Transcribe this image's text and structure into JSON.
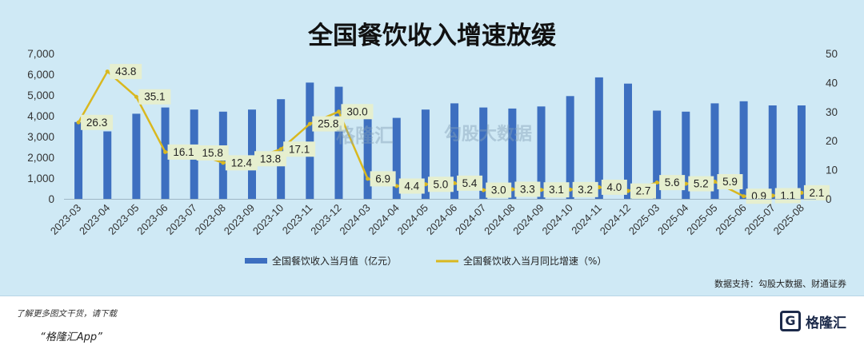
{
  "title": "全国餐饮收入增速放缓",
  "source": "数据支持：勾股大数据、财通证券",
  "footer": {
    "line1": "了解更多图文干货，请下载",
    "line2": "“格隆汇App”",
    "brand": "格隆汇",
    "brand_icon": "G"
  },
  "watermarks": {
    "left": "格隆汇",
    "right": "勾股大数据"
  },
  "colors": {
    "bar": "#3d6fc0",
    "line": "#d9b820",
    "label_box": "#e6efcf",
    "background": "#cfe9f5"
  },
  "chart_data": {
    "type": "bar+line",
    "categories": [
      "2023-03",
      "2023-04",
      "2023-05",
      "2023-06",
      "2023-07",
      "2023-08",
      "2023-09",
      "2023-10",
      "2023-11",
      "2023-12",
      "2024-03",
      "2024-04",
      "2024-05",
      "2024-06",
      "2024-07",
      "2024-08",
      "2024-09",
      "2024-10",
      "2024-11",
      "2024-12",
      "2025-03",
      "2025-04",
      "2025-05",
      "2025-06",
      "2025-07",
      "2025-08"
    ],
    "series": [
      {
        "name": "全国餐饮收入当月值（亿元）",
        "type": "bar",
        "axis": "left",
        "values": [
          3700,
          3250,
          4100,
          4400,
          4300,
          4200,
          4300,
          4800,
          5600,
          5400,
          4100,
          3900,
          4300,
          4600,
          4400,
          4350,
          4450,
          4950,
          5850,
          5550,
          4250,
          4200,
          4600,
          4700,
          4500,
          4500
        ]
      },
      {
        "name": "全国餐饮收入当月同比增速（%）",
        "type": "line",
        "axis": "right",
        "values": [
          26.3,
          43.8,
          35.1,
          16.1,
          15.8,
          12.4,
          13.8,
          17.1,
          25.8,
          30.0,
          6.9,
          4.4,
          5.0,
          5.4,
          3.0,
          3.3,
          3.1,
          3.2,
          4.0,
          2.7,
          5.6,
          5.2,
          5.9,
          0.9,
          1.1,
          2.1
        ],
        "labels": [
          "26.3",
          "43.8",
          "35.1",
          "16.1",
          "15.8",
          "12.4",
          "13.8",
          "17.1",
          "25.8",
          "30.0",
          "6.9",
          "4.4",
          "5.0",
          "5.4",
          "3.0",
          "3.3",
          "3.1",
          "3.2",
          "4.0",
          "2.7",
          "5.6",
          "5.2",
          "5.9",
          "0.9",
          "1.1",
          "2.1"
        ]
      }
    ],
    "y_left": {
      "min": 0,
      "max": 7000,
      "ticks": [
        "0",
        "1,000",
        "2,000",
        "3,000",
        "4,000",
        "5,000",
        "6,000",
        "7,000"
      ]
    },
    "y_right": {
      "min": 0,
      "max": 50,
      "ticks": [
        "0",
        "10",
        "20",
        "30",
        "40",
        "50"
      ]
    },
    "grid": false,
    "legend_position": "bottom"
  }
}
